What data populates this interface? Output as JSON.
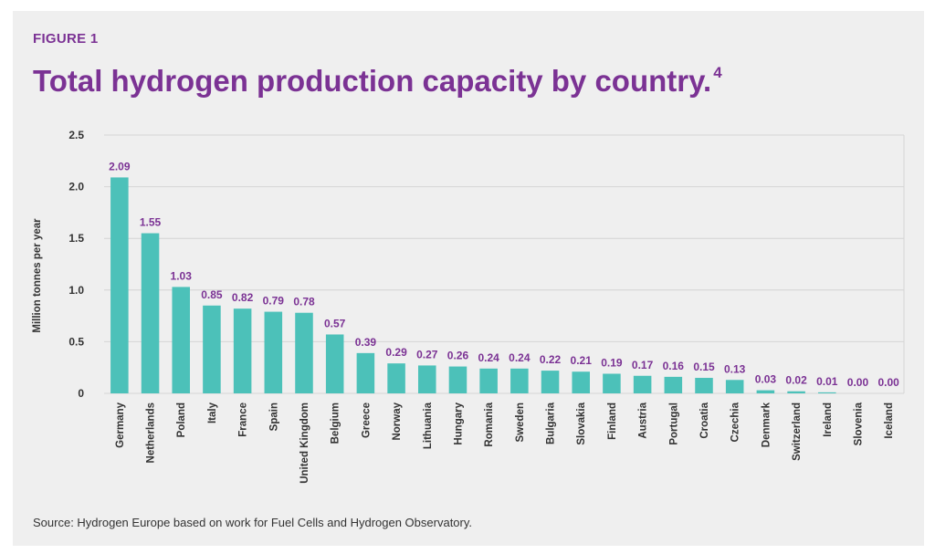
{
  "header": {
    "figure_label": "FIGURE 1",
    "title": "Total hydrogen production capacity by country.",
    "title_superscript": "4"
  },
  "footer": {
    "source": "Source: Hydrogen Europe based on work for Fuel Cells and Hydrogen Observatory."
  },
  "colors": {
    "bar": "#4cc1b9",
    "accent": "#7b3294",
    "grid": "#d4d4d4",
    "background": "#efefef"
  },
  "chart_data": {
    "type": "bar",
    "title": "Total hydrogen production capacity by country.",
    "xlabel": "",
    "ylabel": "Million tonnes per year",
    "ylim": [
      0,
      2.5
    ],
    "yticks": [
      "0",
      "0.5",
      "1.0",
      "1.5",
      "2.0",
      "2.5"
    ],
    "grid": true,
    "categories": [
      "Germany",
      "Netherlands",
      "Poland",
      "Italy",
      "France",
      "Spain",
      "United Kingdom",
      "Belgium",
      "Greece",
      "Norway",
      "Lithuania",
      "Hungary",
      "Romania",
      "Sweden",
      "Bulgaria",
      "Slovakia",
      "Finland",
      "Austria",
      "Portugal",
      "Croatia",
      "Czechia",
      "Denmark",
      "Switzerland",
      "Ireland",
      "Slovenia",
      "Iceland"
    ],
    "values": [
      2.09,
      1.55,
      1.03,
      0.85,
      0.82,
      0.79,
      0.78,
      0.57,
      0.39,
      0.29,
      0.27,
      0.26,
      0.24,
      0.24,
      0.22,
      0.21,
      0.19,
      0.17,
      0.16,
      0.15,
      0.13,
      0.03,
      0.02,
      0.01,
      0.0,
      0.0
    ],
    "data_labels": [
      "2.09",
      "1.55",
      "1.03",
      "0.85",
      "0.82",
      "0.79",
      "0.78",
      "0.57",
      "0.39",
      "0.29",
      "0.27",
      "0.26",
      "0.24",
      "0.24",
      "0.22",
      "0.21",
      "0.19",
      "0.17",
      "0.16",
      "0.15",
      "0.13",
      "0.03",
      "0.02",
      "0.01",
      "0.00",
      "0.00"
    ]
  }
}
